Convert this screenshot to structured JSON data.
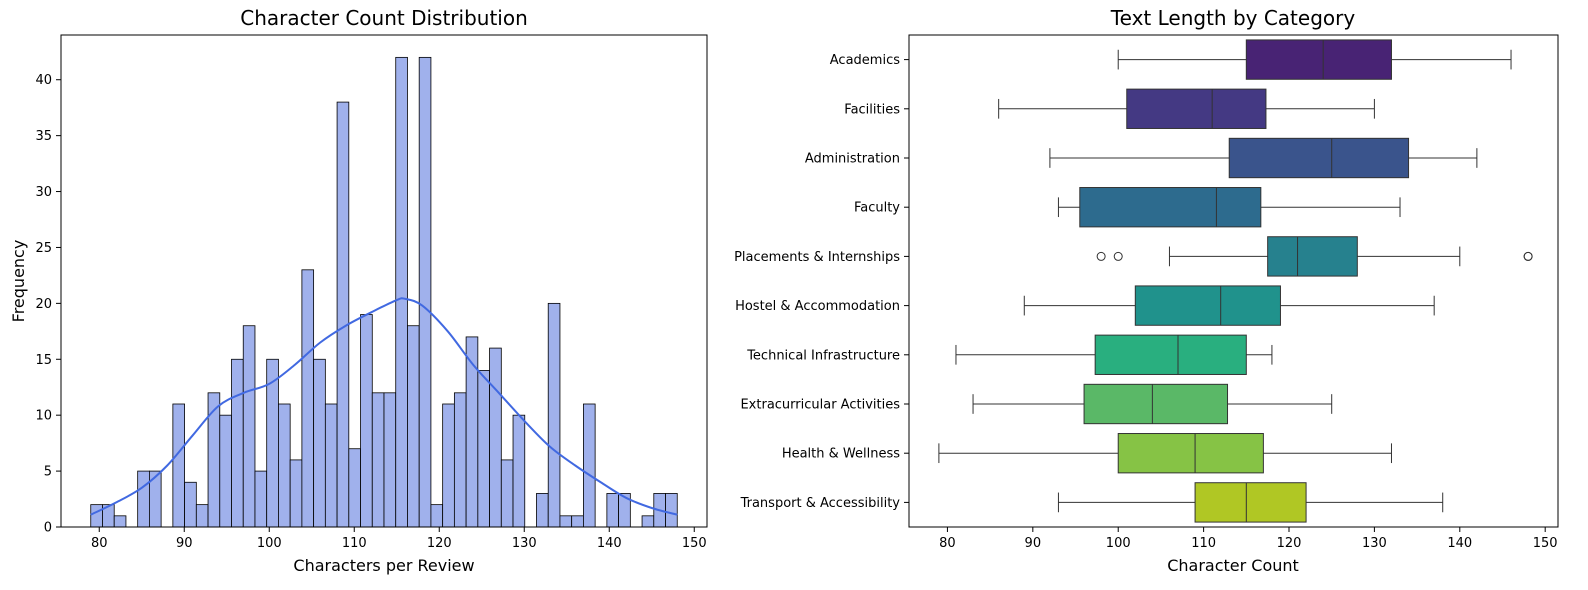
{
  "chart_data": [
    {
      "type": "bar",
      "title": "Character Count Distribution",
      "xlabel": "Characters per Review",
      "ylabel": "Frequency",
      "xlim": [
        75.5,
        151.5
      ],
      "ylim": [
        0,
        44
      ],
      "xticks": [
        80,
        90,
        100,
        110,
        120,
        130,
        140,
        150
      ],
      "yticks": [
        0,
        5,
        10,
        15,
        20,
        25,
        30,
        35,
        40
      ],
      "bin_start": 79,
      "bin_width": 1.38,
      "bin_counts": [
        2,
        2,
        1,
        0,
        5,
        5,
        0,
        11,
        4,
        2,
        12,
        10,
        15,
        18,
        5,
        15,
        11,
        6,
        23,
        15,
        11,
        38,
        7,
        19,
        12,
        12,
        42,
        18,
        42,
        2,
        11,
        12,
        17,
        14,
        16,
        6,
        10,
        0,
        3,
        20,
        1,
        1,
        11,
        0,
        3,
        3,
        0,
        1,
        3,
        3
      ],
      "bar_color": "#a0b1ec",
      "kde_color": "#4169e1",
      "kde_curve": {
        "x": [
          79,
          82,
          85,
          88,
          91,
          94,
          97,
          100,
          103,
          106,
          109,
          112,
          115,
          116,
          118,
          121,
          124,
          127,
          130,
          133,
          136,
          139,
          142,
          145,
          148
        ],
        "y": [
          1.1,
          2.2,
          3.5,
          5.5,
          8.2,
          10.8,
          12.0,
          12.8,
          14.5,
          16.5,
          18.0,
          19.2,
          20.3,
          20.4,
          19.8,
          17.5,
          14.5,
          12.0,
          9.5,
          7.2,
          5.5,
          4.0,
          2.6,
          1.7,
          1.1
        ]
      }
    },
    {
      "type": "box",
      "title": "Text Length by Category",
      "xlabel": "Character Count",
      "ylabel": "",
      "xlim": [
        75.5,
        151.5
      ],
      "xticks": [
        80,
        90,
        100,
        110,
        120,
        130,
        140,
        150
      ],
      "categories": [
        "Academics",
        "Facilities",
        "Administration",
        "Faculty",
        "Placements & Internships",
        "Hostel & Accommodation",
        "Technical Infrastructure",
        "Extracurricular Activities",
        "Health & Wellness",
        "Transport & Accessibility"
      ],
      "boxes": [
        {
          "min": 100,
          "q1": 115,
          "median": 124,
          "q3": 132,
          "max": 146,
          "outliers": [],
          "color": "#482374"
        },
        {
          "min": 86,
          "q1": 101,
          "median": 111,
          "q3": 117.3,
          "max": 130,
          "outliers": [],
          "color": "#443983"
        },
        {
          "min": 92,
          "q1": 113,
          "median": 125,
          "q3": 134,
          "max": 142,
          "outliers": [],
          "color": "#3a548c"
        },
        {
          "min": 93,
          "q1": 95.5,
          "median": 111.5,
          "q3": 116.7,
          "max": 133,
          "outliers": [],
          "color": "#2d6b8e"
        },
        {
          "min": 106,
          "q1": 117.5,
          "median": 121,
          "q3": 128,
          "max": 140,
          "outliers": [
            98,
            100,
            148,
            148
          ],
          "color": "#26818e"
        },
        {
          "min": 89,
          "q1": 102,
          "median": 112,
          "q3": 119,
          "max": 137,
          "outliers": [],
          "color": "#20928c"
        },
        {
          "min": 81,
          "q1": 97.3,
          "median": 107,
          "q3": 115,
          "max": 118,
          "outliers": [],
          "color": "#29af7f"
        },
        {
          "min": 83,
          "q1": 96,
          "median": 104,
          "q3": 112.8,
          "max": 125,
          "outliers": [],
          "color": "#5ab867"
        },
        {
          "min": 79,
          "q1": 100,
          "median": 109,
          "q3": 117,
          "max": 132,
          "outliers": [],
          "color": "#86c345"
        },
        {
          "min": 93,
          "q1": 109,
          "median": 115,
          "q3": 122,
          "max": 138,
          "outliers": [],
          "color": "#b0c724"
        }
      ]
    }
  ]
}
